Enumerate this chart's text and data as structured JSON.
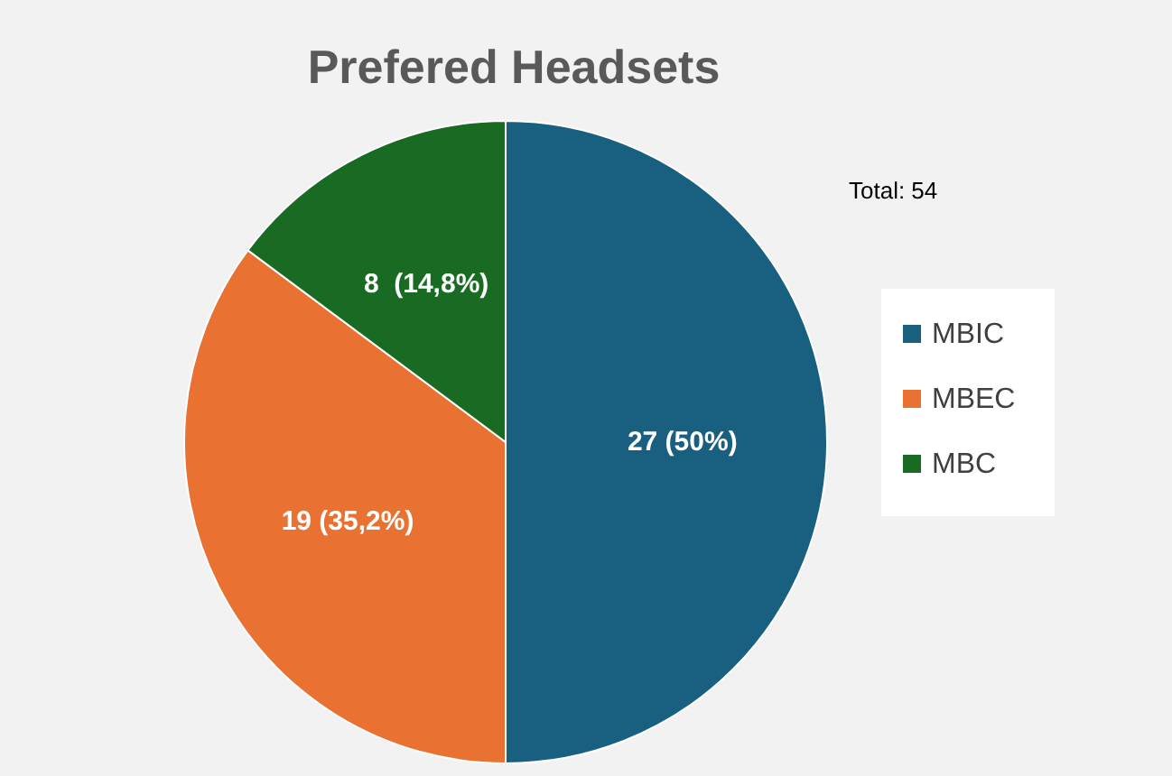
{
  "chart_data": {
    "type": "pie",
    "title": "Prefered Headsets",
    "categories": [
      "MBIC",
      "MBEC",
      "MBC"
    ],
    "values": [
      27,
      19,
      8
    ],
    "colors": [
      "#185f80",
      "#e97132",
      "#196b24"
    ],
    "value_labels": [
      "27 (50%)",
      "19 (35,2%)",
      "8  (14,8%)"
    ],
    "annotations": [
      "Total: 54"
    ],
    "legend": "right"
  }
}
